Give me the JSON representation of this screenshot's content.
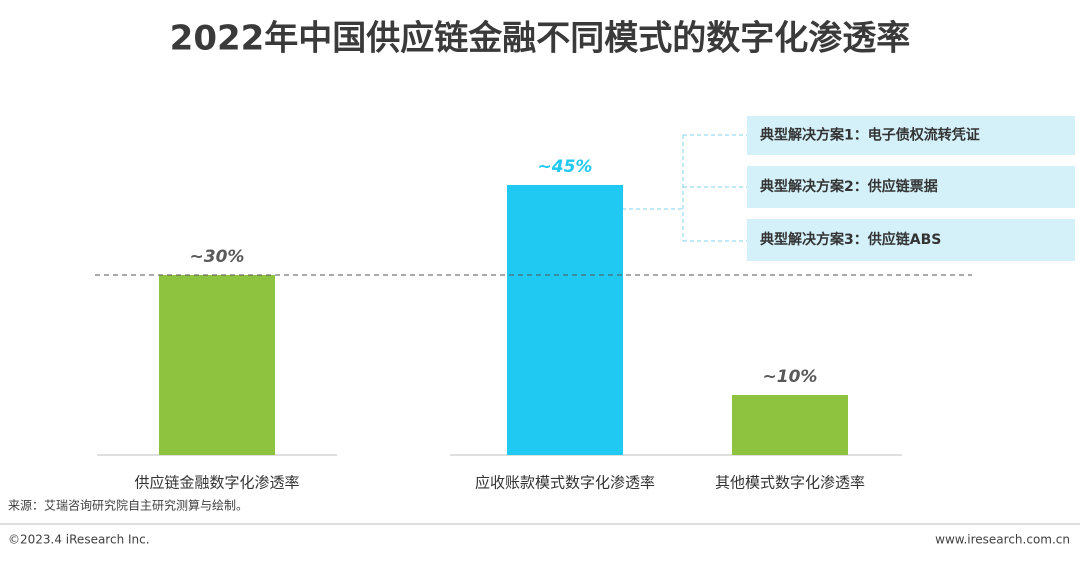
{
  "chart_data": {
    "type": "bar",
    "title": "2022年中国供应链金融不同模式的数字化渗透率",
    "categories": [
      "供应链金融数字化渗透率",
      "应收账款模式数字化渗透率",
      "其他模式数字化渗透率"
    ],
    "values": [
      30,
      45,
      10
    ],
    "value_labels": [
      "~30%",
      "~45%",
      "~10%"
    ],
    "colors": [
      "#8DC33F",
      "#1FC9F1",
      "#8DC33F"
    ],
    "label_colors": [
      "#595959",
      "#1FC9F1",
      "#595959"
    ],
    "annotations": [
      "典型解决方案1：电子债权流转凭证",
      "典型解决方案2：供应链票据",
      "典型解决方案3：供应链ABS"
    ]
  },
  "footer": {
    "source": "来源：艾瑞咨询研究院自主研究测算与绘制。",
    "copyright": "©2023.4 iResearch Inc.",
    "website": "www.iresearch.com.cn"
  }
}
